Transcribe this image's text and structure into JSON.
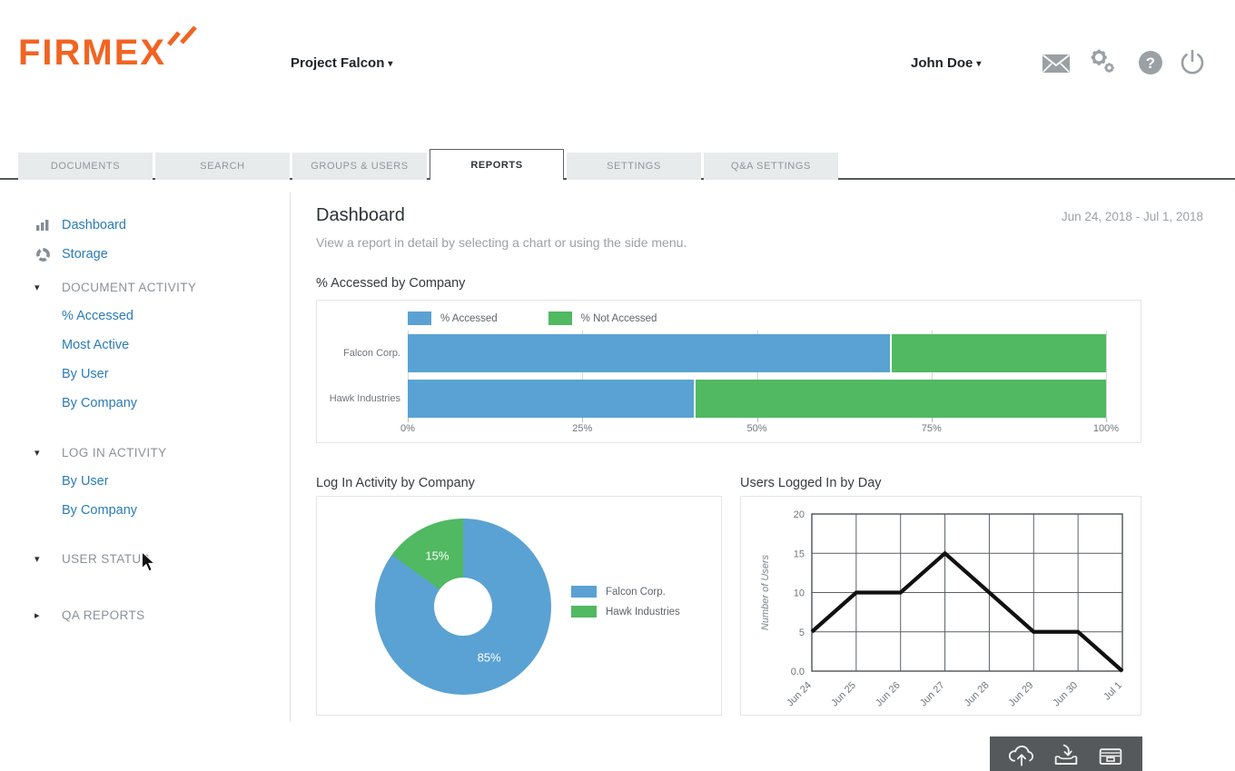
{
  "brand": {
    "logo_text": "FIRMEX",
    "color": "#f16422"
  },
  "header": {
    "project_name": "Project Falcon",
    "user_name": "John Doe",
    "icons": [
      "mail-icon",
      "settings-gears-icon",
      "help-icon",
      "power-icon"
    ]
  },
  "tabs": [
    {
      "label": "DOCUMENTS",
      "active": false
    },
    {
      "label": "SEARCH",
      "active": false
    },
    {
      "label": "GROUPS & USERS",
      "active": false
    },
    {
      "label": "REPORTS",
      "active": true
    },
    {
      "label": "SETTINGS",
      "active": false
    },
    {
      "label": "Q&A SETTINGS",
      "active": false
    }
  ],
  "sidebar": [
    {
      "type": "link",
      "icon": "bar-chart-icon",
      "label": "Dashboard"
    },
    {
      "type": "link",
      "icon": "storage-donut-icon",
      "label": "Storage"
    },
    {
      "type": "section",
      "label": "DOCUMENT ACTIVITY",
      "expanded": true
    },
    {
      "type": "sublink",
      "label": "% Accessed"
    },
    {
      "type": "sublink",
      "label": "Most Active"
    },
    {
      "type": "sublink",
      "label": "By User"
    },
    {
      "type": "sublink",
      "label": "By Company"
    },
    {
      "type": "section",
      "label": "LOG IN ACTIVITY",
      "expanded": true
    },
    {
      "type": "sublink",
      "label": "By User"
    },
    {
      "type": "sublink",
      "label": "By Company"
    },
    {
      "type": "section",
      "label": "USER STATUS",
      "expanded": true
    },
    {
      "type": "section",
      "label": "QA REPORTS",
      "expanded": false
    }
  ],
  "main": {
    "title": "Dashboard",
    "subtitle": "View a report in detail by selecting a chart or using the side menu.",
    "date_range": "Jun 24, 2018 - Jul 1, 2018"
  },
  "chart_data": [
    {
      "type": "bar",
      "orientation": "horizontal",
      "stacked": true,
      "title": "% Accessed by Company",
      "categories": [
        "Falcon Corp.",
        "Hawk Industries"
      ],
      "series": [
        {
          "name": "% Accessed",
          "color": "#5aa2d3",
          "values": [
            69,
            41
          ]
        },
        {
          "name": "% Not Accessed",
          "color": "#50b961",
          "values": [
            31,
            59
          ]
        }
      ],
      "xlim": [
        0,
        100
      ],
      "xticks": [
        "0%",
        "25%",
        "50%",
        "75%",
        "100%"
      ],
      "legend_position": "top",
      "grid": true
    },
    {
      "type": "pie",
      "donut": true,
      "title": "Log In Activity by Company",
      "labels": [
        "Falcon Corp.",
        "Hawk Industries"
      ],
      "values": [
        85,
        15
      ],
      "slice_labels": [
        "85%",
        "15%"
      ],
      "colors": [
        "#5aa2d3",
        "#50b961"
      ],
      "legend_position": "right"
    },
    {
      "type": "line",
      "title": "Users Logged In by Day",
      "x": [
        "Jun 24",
        "Jun 25",
        "Jun 26",
        "Jun 27",
        "Jun 28",
        "Jun 29",
        "Jun 30",
        "Jul 1"
      ],
      "values": [
        5,
        10,
        10,
        15,
        10,
        5,
        5,
        0
      ],
      "xlabel": "",
      "ylabel": "Number of Users",
      "ylim": [
        0,
        20
      ],
      "yticks": [
        "0.0",
        "5",
        "10",
        "15",
        "20"
      ],
      "grid": true,
      "line_color": "#111111"
    }
  ],
  "toolbar": {
    "icons": [
      "upload-cloud-icon",
      "export-tray-icon",
      "archive-icon"
    ]
  }
}
